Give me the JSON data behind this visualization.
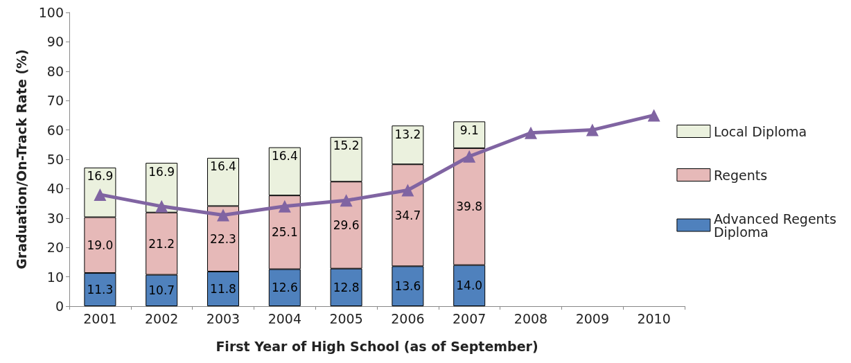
{
  "chart_data": {
    "type": "bar",
    "stacked": true,
    "xlabel": "First Year of High School (as of September)",
    "ylabel": "Graduation/On-Track Rate (%)",
    "categories": [
      "2001",
      "2002",
      "2003",
      "2004",
      "2005",
      "2006",
      "2007",
      "2008",
      "2009",
      "2010"
    ],
    "series": [
      {
        "name": "Advanced Regents Diploma",
        "color": "#4f81bd",
        "values": [
          11.3,
          10.7,
          11.8,
          12.6,
          12.8,
          13.6,
          14.0,
          null,
          null,
          null
        ],
        "value_labels": [
          "11.3",
          "10.7",
          "11.8",
          "12.6",
          "12.8",
          "13.6",
          "14.0",
          null,
          null,
          null
        ]
      },
      {
        "name": "Regents",
        "color": "#e6b9b8",
        "values": [
          19.0,
          21.2,
          22.3,
          25.1,
          29.6,
          34.7,
          39.8,
          null,
          null,
          null
        ],
        "value_labels": [
          "19.0",
          "21.2",
          "22.3",
          "25.1",
          "29.6",
          "34.7",
          "39.8",
          null,
          null,
          null
        ]
      },
      {
        "name": "Local Diploma",
        "color": "#ebf1de",
        "values": [
          16.9,
          16.9,
          16.4,
          16.4,
          15.2,
          13.2,
          9.1,
          null,
          null,
          null
        ],
        "value_labels": [
          "16.9",
          "16.9",
          "16.4",
          "16.4",
          "15.2",
          "13.2",
          "9.1",
          null,
          null,
          null
        ]
      },
      {
        "type": "line",
        "color": "#8064a2",
        "marker": "triangle",
        "line_style": "solid",
        "values": [
          38,
          34,
          31,
          34,
          36,
          39.5,
          51,
          59,
          60,
          65
        ]
      }
    ],
    "ylim": [
      0,
      100
    ],
    "yticks": [
      0,
      10,
      20,
      30,
      40,
      50,
      60,
      70,
      80,
      90,
      100
    ],
    "grid": false,
    "legend": "right"
  }
}
